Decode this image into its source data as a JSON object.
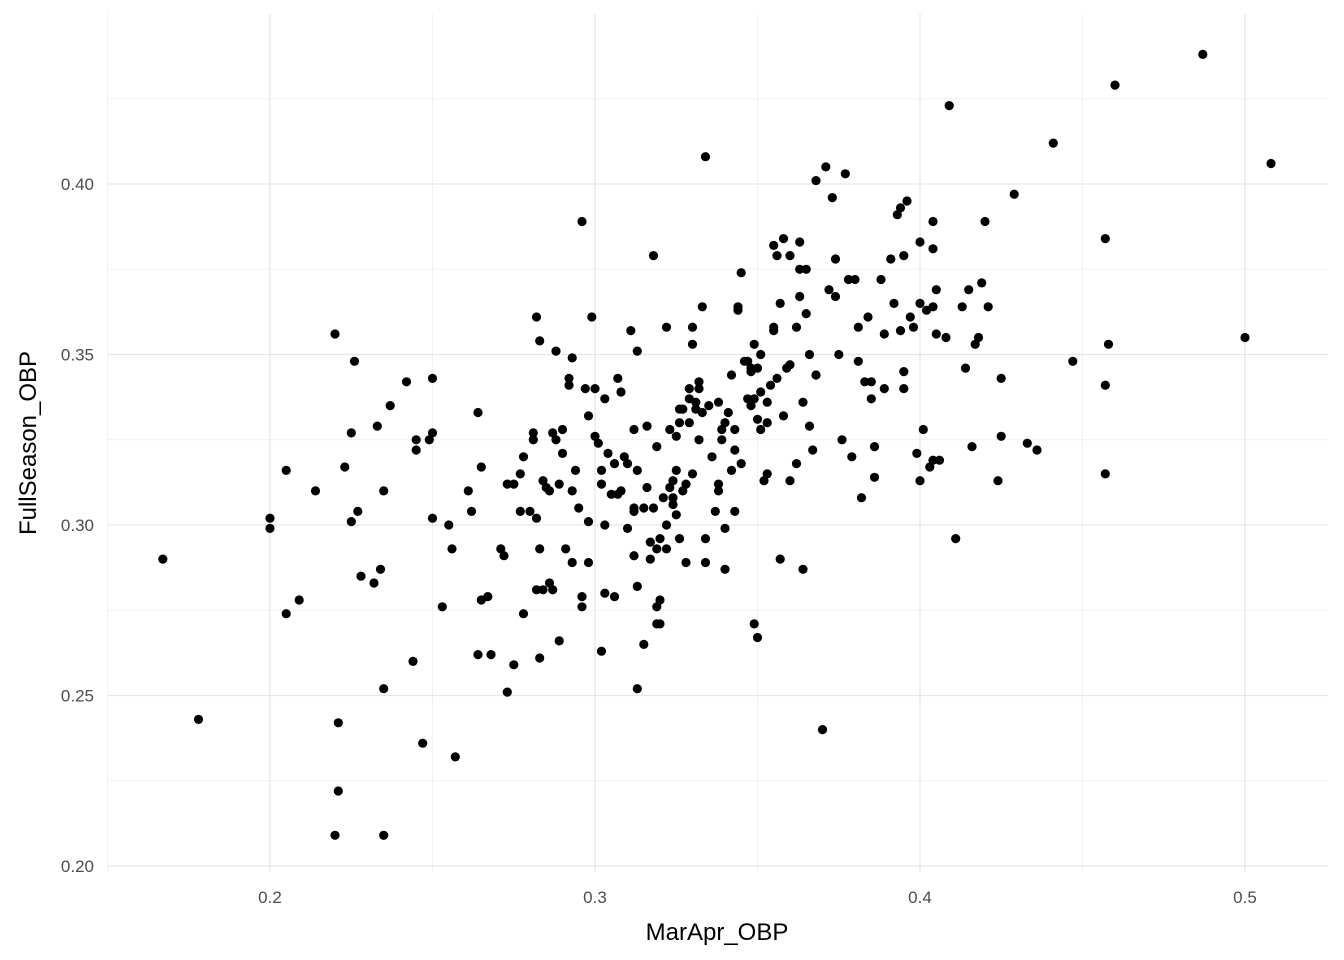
{
  "chart_data": {
    "type": "scatter",
    "title": "",
    "xlabel": "MarApr_OBP",
    "ylabel": "FullSeason_OBP",
    "xlim": [
      0.15,
      0.525
    ],
    "ylim": [
      0.195,
      0.445
    ],
    "x_ticks": [
      0.2,
      0.3,
      0.4,
      0.5
    ],
    "x_tick_labels": [
      "0.2",
      "0.3",
      "0.4",
      "0.5"
    ],
    "y_ticks": [
      0.2,
      0.25,
      0.3,
      0.35,
      0.4
    ],
    "y_tick_labels": [
      "0.20",
      "0.25",
      "0.30",
      "0.35",
      "0.40"
    ],
    "grid": true,
    "point_color": "#000000",
    "points": [
      [
        0.167,
        0.29
      ],
      [
        0.178,
        0.243
      ],
      [
        0.2,
        0.302
      ],
      [
        0.2,
        0.299
      ],
      [
        0.205,
        0.316
      ],
      [
        0.205,
        0.274
      ],
      [
        0.209,
        0.278
      ],
      [
        0.214,
        0.31
      ],
      [
        0.22,
        0.356
      ],
      [
        0.22,
        0.209
      ],
      [
        0.221,
        0.242
      ],
      [
        0.221,
        0.222
      ],
      [
        0.223,
        0.317
      ],
      [
        0.225,
        0.301
      ],
      [
        0.225,
        0.327
      ],
      [
        0.226,
        0.348
      ],
      [
        0.227,
        0.304
      ],
      [
        0.228,
        0.285
      ],
      [
        0.232,
        0.283
      ],
      [
        0.233,
        0.329
      ],
      [
        0.234,
        0.287
      ],
      [
        0.235,
        0.31
      ],
      [
        0.235,
        0.252
      ],
      [
        0.235,
        0.209
      ],
      [
        0.237,
        0.335
      ],
      [
        0.242,
        0.342
      ],
      [
        0.244,
        0.26
      ],
      [
        0.245,
        0.325
      ],
      [
        0.245,
        0.322
      ],
      [
        0.247,
        0.236
      ],
      [
        0.249,
        0.325
      ],
      [
        0.25,
        0.327
      ],
      [
        0.25,
        0.343
      ],
      [
        0.25,
        0.302
      ],
      [
        0.253,
        0.276
      ],
      [
        0.255,
        0.3
      ],
      [
        0.256,
        0.293
      ],
      [
        0.257,
        0.232
      ],
      [
        0.261,
        0.31
      ],
      [
        0.262,
        0.304
      ],
      [
        0.264,
        0.333
      ],
      [
        0.264,
        0.262
      ],
      [
        0.265,
        0.317
      ],
      [
        0.265,
        0.278
      ],
      [
        0.267,
        0.279
      ],
      [
        0.268,
        0.262
      ],
      [
        0.271,
        0.293
      ],
      [
        0.272,
        0.291
      ],
      [
        0.273,
        0.312
      ],
      [
        0.273,
        0.251
      ],
      [
        0.275,
        0.312
      ],
      [
        0.275,
        0.259
      ],
      [
        0.277,
        0.315
      ],
      [
        0.277,
        0.304
      ],
      [
        0.278,
        0.32
      ],
      [
        0.278,
        0.274
      ],
      [
        0.28,
        0.304
      ],
      [
        0.281,
        0.327
      ],
      [
        0.281,
        0.325
      ],
      [
        0.282,
        0.361
      ],
      [
        0.282,
        0.302
      ],
      [
        0.282,
        0.281
      ],
      [
        0.283,
        0.354
      ],
      [
        0.283,
        0.293
      ],
      [
        0.283,
        0.261
      ],
      [
        0.284,
        0.313
      ],
      [
        0.284,
        0.281
      ],
      [
        0.285,
        0.311
      ],
      [
        0.286,
        0.31
      ],
      [
        0.286,
        0.283
      ],
      [
        0.287,
        0.327
      ],
      [
        0.287,
        0.281
      ],
      [
        0.288,
        0.325
      ],
      [
        0.288,
        0.351
      ],
      [
        0.289,
        0.312
      ],
      [
        0.289,
        0.266
      ],
      [
        0.29,
        0.328
      ],
      [
        0.29,
        0.321
      ],
      [
        0.291,
        0.293
      ],
      [
        0.292,
        0.343
      ],
      [
        0.292,
        0.341
      ],
      [
        0.293,
        0.349
      ],
      [
        0.293,
        0.31
      ],
      [
        0.293,
        0.289
      ],
      [
        0.294,
        0.316
      ],
      [
        0.295,
        0.305
      ],
      [
        0.296,
        0.389
      ],
      [
        0.296,
        0.279
      ],
      [
        0.296,
        0.276
      ],
      [
        0.297,
        0.34
      ],
      [
        0.298,
        0.332
      ],
      [
        0.298,
        0.301
      ],
      [
        0.298,
        0.289
      ],
      [
        0.299,
        0.361
      ],
      [
        0.3,
        0.34
      ],
      [
        0.3,
        0.326
      ],
      [
        0.301,
        0.324
      ],
      [
        0.302,
        0.316
      ],
      [
        0.302,
        0.312
      ],
      [
        0.302,
        0.263
      ],
      [
        0.303,
        0.337
      ],
      [
        0.303,
        0.3
      ],
      [
        0.303,
        0.28
      ],
      [
        0.304,
        0.321
      ],
      [
        0.305,
        0.309
      ],
      [
        0.306,
        0.318
      ],
      [
        0.306,
        0.279
      ],
      [
        0.307,
        0.343
      ],
      [
        0.307,
        0.309
      ],
      [
        0.308,
        0.339
      ],
      [
        0.308,
        0.31
      ],
      [
        0.309,
        0.32
      ],
      [
        0.31,
        0.318
      ],
      [
        0.31,
        0.299
      ],
      [
        0.311,
        0.357
      ],
      [
        0.312,
        0.328
      ],
      [
        0.312,
        0.305
      ],
      [
        0.312,
        0.304
      ],
      [
        0.312,
        0.291
      ],
      [
        0.313,
        0.351
      ],
      [
        0.313,
        0.316
      ],
      [
        0.313,
        0.282
      ],
      [
        0.313,
        0.252
      ],
      [
        0.315,
        0.305
      ],
      [
        0.315,
        0.265
      ],
      [
        0.316,
        0.329
      ],
      [
        0.316,
        0.311
      ],
      [
        0.317,
        0.295
      ],
      [
        0.317,
        0.29
      ],
      [
        0.318,
        0.379
      ],
      [
        0.318,
        0.305
      ],
      [
        0.319,
        0.323
      ],
      [
        0.319,
        0.293
      ],
      [
        0.319,
        0.276
      ],
      [
        0.319,
        0.271
      ],
      [
        0.32,
        0.296
      ],
      [
        0.32,
        0.278
      ],
      [
        0.32,
        0.271
      ],
      [
        0.321,
        0.308
      ],
      [
        0.322,
        0.358
      ],
      [
        0.322,
        0.3
      ],
      [
        0.322,
        0.293
      ],
      [
        0.323,
        0.328
      ],
      [
        0.323,
        0.311
      ],
      [
        0.324,
        0.313
      ],
      [
        0.324,
        0.308
      ],
      [
        0.324,
        0.306
      ],
      [
        0.325,
        0.326
      ],
      [
        0.325,
        0.316
      ],
      [
        0.325,
        0.303
      ],
      [
        0.326,
        0.334
      ],
      [
        0.326,
        0.33
      ],
      [
        0.326,
        0.296
      ],
      [
        0.327,
        0.334
      ],
      [
        0.327,
        0.31
      ],
      [
        0.328,
        0.312
      ],
      [
        0.328,
        0.289
      ],
      [
        0.329,
        0.34
      ],
      [
        0.329,
        0.337
      ],
      [
        0.329,
        0.33
      ],
      [
        0.33,
        0.358
      ],
      [
        0.33,
        0.353
      ],
      [
        0.33,
        0.315
      ],
      [
        0.331,
        0.336
      ],
      [
        0.331,
        0.334
      ],
      [
        0.332,
        0.342
      ],
      [
        0.332,
        0.325
      ],
      [
        0.332,
        0.34
      ],
      [
        0.333,
        0.333
      ],
      [
        0.333,
        0.364
      ],
      [
        0.334,
        0.408
      ],
      [
        0.334,
        0.296
      ],
      [
        0.334,
        0.289
      ],
      [
        0.335,
        0.335
      ],
      [
        0.336,
        0.32
      ],
      [
        0.337,
        0.304
      ],
      [
        0.338,
        0.336
      ],
      [
        0.338,
        0.31
      ],
      [
        0.338,
        0.312
      ],
      [
        0.339,
        0.328
      ],
      [
        0.339,
        0.325
      ],
      [
        0.34,
        0.33
      ],
      [
        0.34,
        0.299
      ],
      [
        0.34,
        0.287
      ],
      [
        0.341,
        0.333
      ],
      [
        0.342,
        0.344
      ],
      [
        0.342,
        0.316
      ],
      [
        0.343,
        0.328
      ],
      [
        0.343,
        0.304
      ],
      [
        0.343,
        0.322
      ],
      [
        0.344,
        0.364
      ],
      [
        0.344,
        0.363
      ],
      [
        0.345,
        0.374
      ],
      [
        0.345,
        0.318
      ],
      [
        0.346,
        0.348
      ],
      [
        0.347,
        0.348
      ],
      [
        0.347,
        0.337
      ],
      [
        0.348,
        0.346
      ],
      [
        0.348,
        0.335
      ],
      [
        0.348,
        0.345
      ],
      [
        0.349,
        0.353
      ],
      [
        0.349,
        0.337
      ],
      [
        0.349,
        0.271
      ],
      [
        0.35,
        0.346
      ],
      [
        0.35,
        0.331
      ],
      [
        0.35,
        0.267
      ],
      [
        0.351,
        0.339
      ],
      [
        0.351,
        0.35
      ],
      [
        0.351,
        0.328
      ],
      [
        0.352,
        0.313
      ],
      [
        0.353,
        0.336
      ],
      [
        0.353,
        0.33
      ],
      [
        0.353,
        0.315
      ],
      [
        0.354,
        0.341
      ],
      [
        0.355,
        0.382
      ],
      [
        0.355,
        0.358
      ],
      [
        0.355,
        0.357
      ],
      [
        0.356,
        0.343
      ],
      [
        0.356,
        0.379
      ],
      [
        0.357,
        0.365
      ],
      [
        0.357,
        0.29
      ],
      [
        0.358,
        0.384
      ],
      [
        0.358,
        0.332
      ],
      [
        0.359,
        0.346
      ],
      [
        0.36,
        0.379
      ],
      [
        0.36,
        0.347
      ],
      [
        0.36,
        0.313
      ],
      [
        0.362,
        0.358
      ],
      [
        0.362,
        0.318
      ],
      [
        0.363,
        0.383
      ],
      [
        0.363,
        0.375
      ],
      [
        0.363,
        0.367
      ],
      [
        0.364,
        0.336
      ],
      [
        0.364,
        0.287
      ],
      [
        0.365,
        0.375
      ],
      [
        0.365,
        0.362
      ],
      [
        0.366,
        0.329
      ],
      [
        0.366,
        0.35
      ],
      [
        0.367,
        0.322
      ],
      [
        0.368,
        0.401
      ],
      [
        0.368,
        0.344
      ],
      [
        0.37,
        0.24
      ],
      [
        0.371,
        0.405
      ],
      [
        0.372,
        0.369
      ],
      [
        0.373,
        0.396
      ],
      [
        0.374,
        0.367
      ],
      [
        0.374,
        0.378
      ],
      [
        0.375,
        0.35
      ],
      [
        0.376,
        0.325
      ],
      [
        0.377,
        0.403
      ],
      [
        0.378,
        0.372
      ],
      [
        0.379,
        0.32
      ],
      [
        0.38,
        0.372
      ],
      [
        0.381,
        0.348
      ],
      [
        0.381,
        0.358
      ],
      [
        0.382,
        0.308
      ],
      [
        0.383,
        0.342
      ],
      [
        0.384,
        0.361
      ],
      [
        0.385,
        0.337
      ],
      [
        0.385,
        0.342
      ],
      [
        0.386,
        0.323
      ],
      [
        0.386,
        0.314
      ],
      [
        0.388,
        0.372
      ],
      [
        0.389,
        0.356
      ],
      [
        0.389,
        0.34
      ],
      [
        0.391,
        0.378
      ],
      [
        0.392,
        0.365
      ],
      [
        0.393,
        0.391
      ],
      [
        0.394,
        0.393
      ],
      [
        0.394,
        0.357
      ],
      [
        0.395,
        0.379
      ],
      [
        0.395,
        0.345
      ],
      [
        0.395,
        0.34
      ],
      [
        0.396,
        0.395
      ],
      [
        0.397,
        0.361
      ],
      [
        0.398,
        0.358
      ],
      [
        0.399,
        0.321
      ],
      [
        0.4,
        0.383
      ],
      [
        0.4,
        0.365
      ],
      [
        0.4,
        0.313
      ],
      [
        0.401,
        0.328
      ],
      [
        0.402,
        0.363
      ],
      [
        0.403,
        0.317
      ],
      [
        0.404,
        0.389
      ],
      [
        0.404,
        0.381
      ],
      [
        0.404,
        0.364
      ],
      [
        0.404,
        0.319
      ],
      [
        0.405,
        0.369
      ],
      [
        0.405,
        0.356
      ],
      [
        0.406,
        0.319
      ],
      [
        0.408,
        0.355
      ],
      [
        0.409,
        0.423
      ],
      [
        0.411,
        0.296
      ],
      [
        0.413,
        0.364
      ],
      [
        0.414,
        0.346
      ],
      [
        0.415,
        0.369
      ],
      [
        0.416,
        0.323
      ],
      [
        0.417,
        0.353
      ],
      [
        0.418,
        0.355
      ],
      [
        0.419,
        0.371
      ],
      [
        0.42,
        0.389
      ],
      [
        0.421,
        0.364
      ],
      [
        0.424,
        0.313
      ],
      [
        0.425,
        0.343
      ],
      [
        0.425,
        0.326
      ],
      [
        0.429,
        0.397
      ],
      [
        0.433,
        0.324
      ],
      [
        0.436,
        0.322
      ],
      [
        0.441,
        0.412
      ],
      [
        0.447,
        0.348
      ],
      [
        0.457,
        0.384
      ],
      [
        0.457,
        0.341
      ],
      [
        0.457,
        0.315
      ],
      [
        0.458,
        0.353
      ],
      [
        0.46,
        0.429
      ],
      [
        0.487,
        0.438
      ],
      [
        0.5,
        0.355
      ],
      [
        0.508,
        0.406
      ]
    ]
  }
}
